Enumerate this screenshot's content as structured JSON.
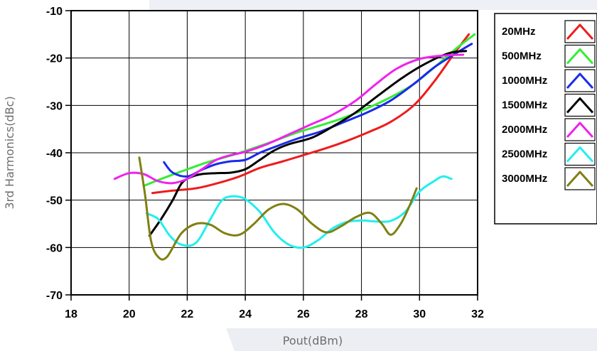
{
  "chart_data": {
    "type": "line",
    "xlabel": "Pout(dBm)",
    "ylabel": "3rd Harmonics(dBc)",
    "xlim": [
      18,
      32
    ],
    "ylim": [
      -70,
      -10
    ],
    "x_ticks": [
      "18",
      "20",
      "22",
      "24",
      "26",
      "28",
      "30",
      "32"
    ],
    "y_ticks": [
      "-10",
      "-20",
      "-30",
      "-40",
      "-50",
      "-60",
      "-70"
    ],
    "grid": true,
    "legend_position": "right",
    "series": [
      {
        "name": "20MHz",
        "color": "#ee1c1c",
        "x": [
          20.8,
          21.5,
          22.3,
          23.0,
          23.8,
          24.5,
          25.3,
          26.0,
          26.8,
          27.5,
          28.3,
          29.0,
          29.8,
          30.5,
          31.2,
          31.7
        ],
        "y": [
          -48.5,
          -48.0,
          -47.5,
          -46.5,
          -45.0,
          -43.2,
          -41.8,
          -40.5,
          -39.0,
          -37.5,
          -35.5,
          -33.5,
          -30.0,
          -25.0,
          -19.0,
          -15.0
        ]
      },
      {
        "name": "500MHz",
        "color": "#33ee33",
        "x": [
          20.5,
          21.2,
          22.0,
          22.7,
          23.5,
          24.3,
          25.0,
          25.8,
          26.6,
          27.4,
          28.2,
          29.0,
          29.8,
          30.6,
          31.3,
          31.9
        ],
        "y": [
          -47.0,
          -45.3,
          -43.5,
          -42.0,
          -40.6,
          -39.0,
          -37.5,
          -35.7,
          -34.2,
          -32.6,
          -30.6,
          -28.3,
          -25.5,
          -21.5,
          -17.8,
          -15.0
        ]
      },
      {
        "name": "1000MHz",
        "color": "#1a2aee",
        "x": [
          21.2,
          21.5,
          22.0,
          22.5,
          23.0,
          23.5,
          24.0,
          24.5,
          25.0,
          25.8,
          26.6,
          27.4,
          28.2,
          29.0,
          29.8,
          30.5,
          31.2,
          31.8
        ],
        "y": [
          -42.0,
          -44.2,
          -45.0,
          -43.6,
          -42.4,
          -41.8,
          -41.5,
          -40.0,
          -38.8,
          -37.0,
          -35.5,
          -33.5,
          -31.5,
          -29.0,
          -25.5,
          -22.0,
          -19.2,
          -17.0
        ]
      },
      {
        "name": "1500MHz",
        "color": "#000000",
        "x": [
          20.7,
          21.1,
          21.5,
          21.8,
          22.1,
          22.5,
          23.0,
          23.5,
          24.0,
          24.5,
          25.0,
          25.5,
          26.3,
          27.0,
          27.8,
          28.6,
          29.4,
          30.2,
          31.0,
          31.6
        ],
        "y": [
          -57.5,
          -54.0,
          -50.0,
          -46.5,
          -45.2,
          -44.5,
          -44.3,
          -44.2,
          -43.5,
          -41.5,
          -39.5,
          -38.2,
          -36.8,
          -34.5,
          -31.5,
          -27.8,
          -24.2,
          -21.2,
          -19.0,
          -18.5
        ]
      },
      {
        "name": "2000MHz",
        "color": "#ee22ee",
        "x": [
          19.5,
          20.0,
          20.5,
          21.0,
          21.5,
          22.0,
          22.5,
          23.0,
          23.5,
          24.0,
          24.7,
          25.4,
          26.2,
          27.0,
          27.8,
          28.5,
          29.2,
          30.0,
          30.8,
          31.5
        ],
        "y": [
          -45.5,
          -44.3,
          -44.5,
          -46.0,
          -46.4,
          -45.5,
          -43.5,
          -41.5,
          -40.5,
          -39.8,
          -38.3,
          -36.4,
          -34.2,
          -32.0,
          -29.0,
          -25.5,
          -22.3,
          -20.2,
          -19.5,
          -19.3
        ]
      },
      {
        "name": "2500MHz",
        "color": "#22eeee",
        "x": [
          20.6,
          21.0,
          21.4,
          21.8,
          22.3,
          22.8,
          23.2,
          23.6,
          24.0,
          24.5,
          25.0,
          25.5,
          26.0,
          26.5,
          27.0,
          27.5,
          28.0,
          28.5,
          29.0,
          29.5,
          30.0,
          30.5,
          30.8,
          31.1
        ],
        "y": [
          -52.8,
          -54.0,
          -57.5,
          -59.4,
          -59.0,
          -54.0,
          -50.0,
          -49.2,
          -49.8,
          -52.5,
          -56.8,
          -59.4,
          -60.0,
          -58.5,
          -56.0,
          -54.6,
          -54.3,
          -54.5,
          -54.4,
          -52.5,
          -48.2,
          -46.0,
          -45.0,
          -45.5
        ]
      },
      {
        "name": "3000MHz",
        "color": "#808012",
        "x": [
          20.35,
          20.55,
          20.75,
          21.0,
          21.3,
          21.8,
          22.3,
          22.8,
          23.3,
          23.8,
          24.3,
          24.8,
          25.3,
          25.8,
          26.3,
          26.8,
          27.3,
          27.8,
          28.3,
          28.7,
          29.0,
          29.3,
          29.6,
          29.9
        ],
        "y": [
          -41.0,
          -49.0,
          -58.5,
          -62.0,
          -62.0,
          -57.0,
          -55.0,
          -55.2,
          -57.0,
          -57.3,
          -55.0,
          -52.0,
          -50.8,
          -52.0,
          -55.0,
          -56.8,
          -55.5,
          -53.6,
          -52.7,
          -55.0,
          -57.3,
          -55.5,
          -52.0,
          -47.5
        ]
      }
    ]
  }
}
